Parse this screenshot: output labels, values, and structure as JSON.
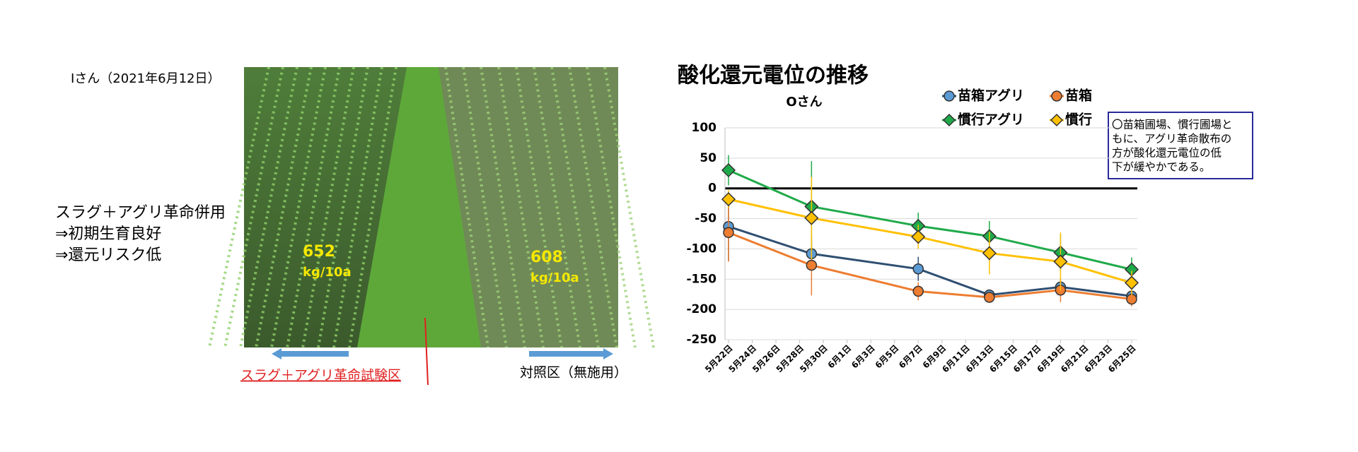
{
  "photo": {
    "caption": "Iさん（2021年6月12日）",
    "notes": [
      "スラグ＋アグリ革命併用",
      "⇒初期生育良好",
      "⇒還元リスク低"
    ],
    "left_yield": "652",
    "left_unit": "kg/10a",
    "right_yield": "608",
    "right_unit": "kg/10a",
    "left_label": "スラグ＋アグリ革命試験区",
    "right_label": "対照区（無施用）"
  },
  "chart_data": {
    "type": "line",
    "title": "酸化還元電位の推移",
    "subtitle": "Oさん",
    "x": [
      "5月22日",
      "5月29日",
      "6月7日",
      "6月13日",
      "6月19日",
      "6月25日"
    ],
    "xlim": [
      "5月22日",
      "6月25日"
    ],
    "xticks": [
      "5月22日",
      "5月24日",
      "5月26日",
      "5月28日",
      "5月30日",
      "6月1日",
      "6月3日",
      "6月5日",
      "6月7日",
      "6月9日",
      "6月11日",
      "6月13日",
      "6月15日",
      "6月17日",
      "6月19日",
      "6月21日",
      "6月23日",
      "6月25日"
    ],
    "ylim": [
      -250,
      100
    ],
    "yticks": [
      100,
      50,
      0,
      -50,
      -100,
      -150,
      -200,
      -250
    ],
    "grid": true,
    "series": [
      {
        "name": "苗箱アグリ",
        "color": "#2f4f72",
        "marker_color": "#5b9bd5",
        "marker": "circle",
        "values": [
          -63,
          -108,
          -133,
          -176,
          -163,
          -178
        ],
        "errors": [
          57,
          20,
          20,
          8,
          10,
          8
        ]
      },
      {
        "name": "苗箱",
        "color": "#ed7d31",
        "marker_color": "#ed7d31",
        "marker": "circle",
        "values": [
          -73,
          -127,
          -170,
          -180,
          -168,
          -183
        ],
        "errors": [
          48,
          50,
          15,
          8,
          20,
          12
        ]
      },
      {
        "name": "慣行アグリ",
        "color": "#1faa4a",
        "marker_color": "#1faa4a",
        "marker": "diamond",
        "values": [
          30,
          -30,
          -62,
          -79,
          -106,
          -134
        ],
        "errors": [
          25,
          75,
          22,
          25,
          30,
          20
        ]
      },
      {
        "name": "慣行",
        "color": "#ffc000",
        "marker_color": "#ffc000",
        "marker": "diamond",
        "values": [
          -18,
          -49,
          -80,
          -107,
          -121,
          -156
        ],
        "errors": [
          15,
          68,
          20,
          35,
          48,
          20
        ]
      }
    ],
    "annotation": [
      "〇苗箱圃場、慣行圃場と",
      "もに、アグリ革命散布の",
      "方が酸化還元電位の低",
      "下が緩やかである。"
    ]
  }
}
